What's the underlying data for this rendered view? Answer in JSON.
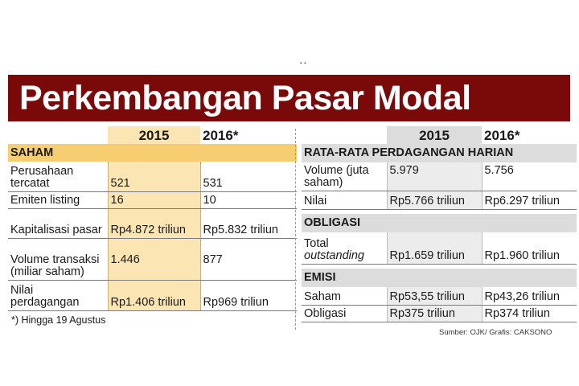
{
  "title": "Perkembangan Pasar Modal",
  "left": {
    "year1": "2015",
    "year2": "2016*",
    "section": "SAHAM",
    "rows": [
      {
        "label": "Perusahaan tercatat",
        "v2015": "521",
        "v2016": "531"
      },
      {
        "label": "Emiten listing",
        "v2015": "16",
        "v2016": "10"
      },
      {
        "label": "Kapitalisasi pasar",
        "v2015": "Rp4.872 triliun",
        "v2016": "Rp5.832 triliun"
      },
      {
        "label": "Volume transaksi (miliar saham)",
        "v2015": "1.446",
        "v2016": "877"
      },
      {
        "label": "Nilai perdagangan",
        "v2015": "Rp1.406 triliun",
        "v2016": "Rp969 triliun"
      }
    ],
    "footnote": "*) Hingga 19 Agustus"
  },
  "right": {
    "year1": "2015",
    "year2": "2016*",
    "section1": "RATA-RATA PERDAGANGAN HARIAN",
    "rows1": [
      {
        "label": "Volume (juta saham)",
        "v2015": "5.979",
        "v2016": "5.756"
      },
      {
        "label": "Nilai",
        "v2015": "Rp5.766 triliun",
        "v2016": "Rp6.297 triliun"
      }
    ],
    "section2": "OBLIGASI",
    "rows2": [
      {
        "label_a": "Total",
        "label_b": "outstanding",
        "v2015": "Rp1.659 triliun",
        "v2016": "Rp1.960 triliun"
      }
    ],
    "section3": "EMISI",
    "rows3": [
      {
        "label": "Saham",
        "v2015": "Rp53,55 triliun",
        "v2016": "Rp43,26 triliun"
      },
      {
        "label": "Obligasi",
        "v2015": "Rp375 triliun",
        "v2016": "Rp374 triliun"
      }
    ],
    "source": "Sumber: OJK/ Grafis: CAKSONO"
  }
}
